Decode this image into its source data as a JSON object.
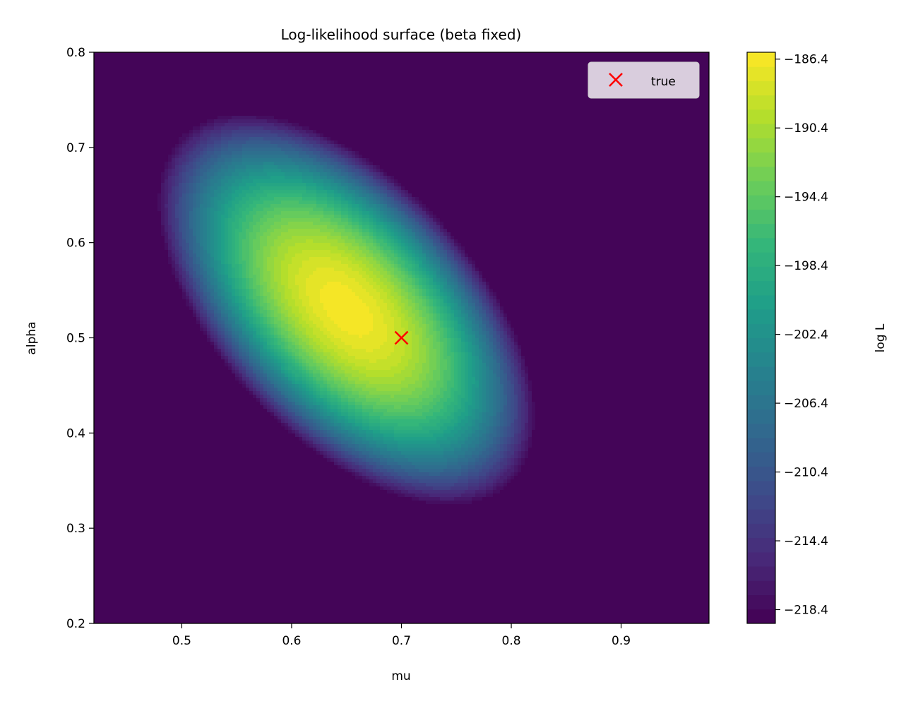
{
  "chart_data": {
    "type": "heatmap",
    "subtype": "filled-contour",
    "title": "Log-likelihood surface (beta fixed)",
    "xlabel": "mu",
    "ylabel": "alpha",
    "xlim": [
      0.42,
      0.98
    ],
    "ylim": [
      0.2,
      0.8
    ],
    "xticks": [
      0.5,
      0.6,
      0.7,
      0.8,
      0.9
    ],
    "xtick_labels": [
      "0.5",
      "0.6",
      "0.7",
      "0.8",
      "0.9"
    ],
    "yticks": [
      0.2,
      0.3,
      0.4,
      0.5,
      0.6,
      0.7,
      0.8
    ],
    "ytick_labels": [
      "0.2",
      "0.3",
      "0.4",
      "0.5",
      "0.6",
      "0.7",
      "0.8"
    ],
    "surface": {
      "max_value": -186.2,
      "max_at": {
        "mu": 0.65,
        "alpha": 0.53
      },
      "quadratic": {
        "a": 1580,
        "b": 1450,
        "c": 1100
      }
    },
    "colorbar": {
      "label": "log L",
      "colormap": "viridis",
      "range": [
        -219.2,
        -186.0
      ],
      "ticks": [
        -186.4,
        -190.4,
        -194.4,
        -198.4,
        -202.4,
        -206.4,
        -210.4,
        -214.4,
        -218.4
      ],
      "tick_labels": [
        "−186.4",
        "−190.4",
        "−194.4",
        "−198.4",
        "−202.4",
        "−206.4",
        "−210.4",
        "−214.4",
        "−218.4"
      ],
      "levels": 40
    },
    "markers": [
      {
        "name": "true",
        "mu": 0.7,
        "alpha": 0.5,
        "symbol": "x",
        "color": "#ff0000"
      }
    ],
    "legend": {
      "placement": "upper right",
      "entries": [
        {
          "label": "true",
          "symbol": "x",
          "color": "#ff0000"
        }
      ]
    },
    "grid": false
  }
}
